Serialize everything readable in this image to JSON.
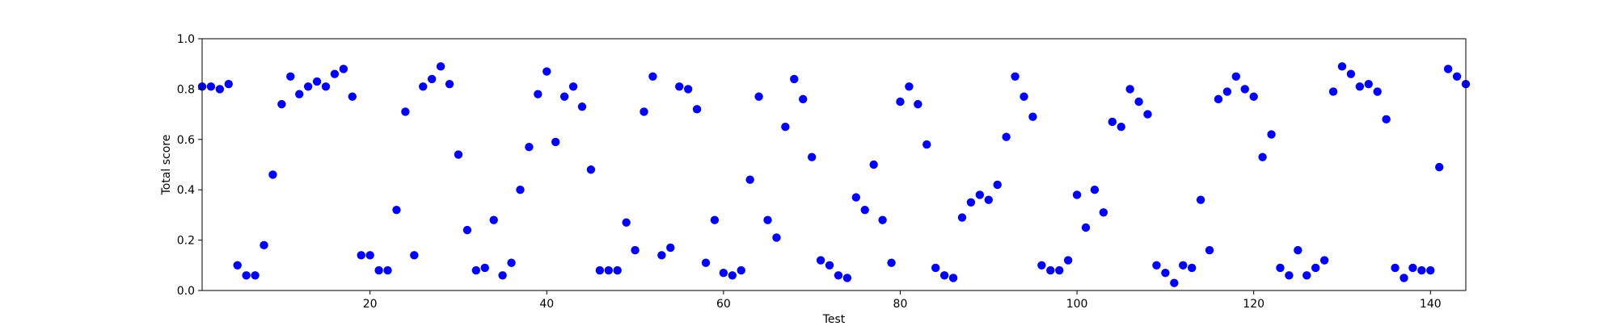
{
  "chart_data": {
    "type": "scatter",
    "title": "",
    "xlabel": "Test",
    "ylabel": "Total score",
    "xlim": [
      1,
      144
    ],
    "ylim": [
      0.0,
      1.0
    ],
    "xticks": [
      20,
      40,
      60,
      80,
      100,
      120,
      140
    ],
    "yticks": [
      0.0,
      0.2,
      0.4,
      0.6,
      0.8,
      1.0
    ],
    "grid": false,
    "legend": "none",
    "series": [
      {
        "color": "#0000ff",
        "marker": "circle",
        "points": [
          [
            1,
            0.81
          ],
          [
            2,
            0.81
          ],
          [
            3,
            0.8
          ],
          [
            4,
            0.82
          ],
          [
            5,
            0.1
          ],
          [
            6,
            0.06
          ],
          [
            7,
            0.06
          ],
          [
            8,
            0.18
          ],
          [
            9,
            0.46
          ],
          [
            10,
            0.74
          ],
          [
            11,
            0.85
          ],
          [
            12,
            0.78
          ],
          [
            13,
            0.81
          ],
          [
            14,
            0.83
          ],
          [
            15,
            0.81
          ],
          [
            16,
            0.86
          ],
          [
            17,
            0.88
          ],
          [
            18,
            0.77
          ],
          [
            19,
            0.14
          ],
          [
            20,
            0.14
          ],
          [
            21,
            0.08
          ],
          [
            22,
            0.08
          ],
          [
            23,
            0.32
          ],
          [
            24,
            0.71
          ],
          [
            25,
            0.14
          ],
          [
            26,
            0.81
          ],
          [
            27,
            0.84
          ],
          [
            28,
            0.89
          ],
          [
            29,
            0.82
          ],
          [
            30,
            0.54
          ],
          [
            31,
            0.24
          ],
          [
            32,
            0.08
          ],
          [
            33,
            0.09
          ],
          [
            34,
            0.28
          ],
          [
            35,
            0.06
          ],
          [
            36,
            0.11
          ],
          [
            37,
            0.4
          ],
          [
            38,
            0.57
          ],
          [
            39,
            0.78
          ],
          [
            40,
            0.87
          ],
          [
            41,
            0.59
          ],
          [
            42,
            0.77
          ],
          [
            43,
            0.81
          ],
          [
            44,
            0.73
          ],
          [
            45,
            0.48
          ],
          [
            46,
            0.08
          ],
          [
            47,
            0.08
          ],
          [
            48,
            0.08
          ],
          [
            49,
            0.27
          ],
          [
            50,
            0.16
          ],
          [
            51,
            0.71
          ],
          [
            52,
            0.85
          ],
          [
            53,
            0.14
          ],
          [
            54,
            0.17
          ],
          [
            55,
            0.81
          ],
          [
            56,
            0.8
          ],
          [
            57,
            0.72
          ],
          [
            58,
            0.11
          ],
          [
            59,
            0.28
          ],
          [
            60,
            0.07
          ],
          [
            61,
            0.06
          ],
          [
            62,
            0.08
          ],
          [
            63,
            0.44
          ],
          [
            64,
            0.77
          ],
          [
            65,
            0.28
          ],
          [
            66,
            0.21
          ],
          [
            67,
            0.65
          ],
          [
            68,
            0.84
          ],
          [
            69,
            0.76
          ],
          [
            70,
            0.53
          ],
          [
            71,
            0.12
          ],
          [
            72,
            0.1
          ],
          [
            73,
            0.06
          ],
          [
            74,
            0.05
          ],
          [
            75,
            0.37
          ],
          [
            76,
            0.32
          ],
          [
            77,
            0.5
          ],
          [
            78,
            0.28
          ],
          [
            79,
            0.11
          ],
          [
            80,
            0.75
          ],
          [
            81,
            0.81
          ],
          [
            82,
            0.74
          ],
          [
            83,
            0.58
          ],
          [
            84,
            0.09
          ],
          [
            85,
            0.06
          ],
          [
            86,
            0.05
          ],
          [
            87,
            0.29
          ],
          [
            88,
            0.35
          ],
          [
            89,
            0.38
          ],
          [
            90,
            0.36
          ],
          [
            91,
            0.42
          ],
          [
            92,
            0.61
          ],
          [
            93,
            0.85
          ],
          [
            94,
            0.77
          ],
          [
            95,
            0.69
          ],
          [
            96,
            0.1
          ],
          [
            97,
            0.08
          ],
          [
            98,
            0.08
          ],
          [
            99,
            0.12
          ],
          [
            100,
            0.38
          ],
          [
            101,
            0.25
          ],
          [
            102,
            0.4
          ],
          [
            103,
            0.31
          ],
          [
            104,
            0.67
          ],
          [
            105,
            0.65
          ],
          [
            106,
            0.8
          ],
          [
            107,
            0.75
          ],
          [
            108,
            0.7
          ],
          [
            109,
            0.1
          ],
          [
            110,
            0.07
          ],
          [
            111,
            0.03
          ],
          [
            112,
            0.1
          ],
          [
            113,
            0.09
          ],
          [
            114,
            0.36
          ],
          [
            115,
            0.16
          ],
          [
            116,
            0.76
          ],
          [
            117,
            0.79
          ],
          [
            118,
            0.85
          ],
          [
            119,
            0.8
          ],
          [
            120,
            0.77
          ],
          [
            121,
            0.53
          ],
          [
            122,
            0.62
          ],
          [
            123,
            0.09
          ],
          [
            124,
            0.06
          ],
          [
            125,
            0.16
          ],
          [
            126,
            0.06
          ],
          [
            127,
            0.09
          ],
          [
            128,
            0.12
          ],
          [
            129,
            0.79
          ],
          [
            130,
            0.89
          ],
          [
            131,
            0.86
          ],
          [
            132,
            0.81
          ],
          [
            133,
            0.82
          ],
          [
            134,
            0.79
          ],
          [
            135,
            0.68
          ],
          [
            136,
            0.09
          ],
          [
            137,
            0.05
          ],
          [
            138,
            0.09
          ],
          [
            139,
            0.08
          ],
          [
            140,
            0.08
          ],
          [
            141,
            0.49
          ],
          [
            142,
            0.88
          ],
          [
            143,
            0.85
          ],
          [
            144,
            0.82
          ]
        ]
      }
    ]
  }
}
